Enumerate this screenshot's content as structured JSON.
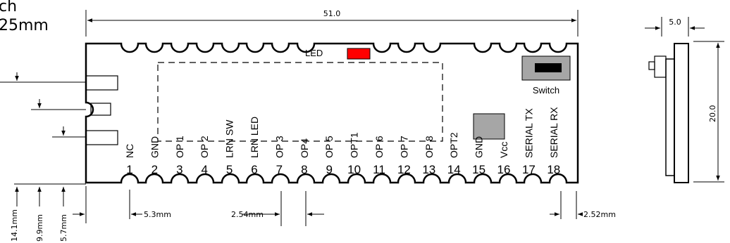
{
  "header": {
    "line1": "ch",
    "line2": "25mm"
  },
  "dimensions": {
    "width": "51.0",
    "side_width": "5.0",
    "height": "20.0",
    "first_pin_offset": "5.3mm",
    "pin_pitch": "2.54mm",
    "last_pin_offset": "2.52mm",
    "left_offsets": [
      "14.1mm",
      "9.9mm",
      "5.7mm"
    ]
  },
  "board": {
    "led_label": "LED",
    "switch_label": "Switch",
    "led_color": "#ff0000",
    "pad_color": "#a6a6a6"
  },
  "pins": [
    {
      "num": "1",
      "name": "NC"
    },
    {
      "num": "2",
      "name": "GND"
    },
    {
      "num": "3",
      "name": "OP 1"
    },
    {
      "num": "4",
      "name": "OP 2"
    },
    {
      "num": "5",
      "name": "LRN SW"
    },
    {
      "num": "6",
      "name": "LRN LED"
    },
    {
      "num": "7",
      "name": "OP 3"
    },
    {
      "num": "8",
      "name": "OP4"
    },
    {
      "num": "9",
      "name": "OP 5"
    },
    {
      "num": "10",
      "name": "OPT1"
    },
    {
      "num": "11",
      "name": "OP 6"
    },
    {
      "num": "12",
      "name": "OP 7"
    },
    {
      "num": "13",
      "name": "OP 8"
    },
    {
      "num": "14",
      "name": "OPT2"
    },
    {
      "num": "15",
      "name": "GND"
    },
    {
      "num": "16",
      "name": "Vcc"
    },
    {
      "num": "17",
      "name": "SERIAL TX"
    },
    {
      "num": "18",
      "name": "SERIAL RX"
    }
  ]
}
